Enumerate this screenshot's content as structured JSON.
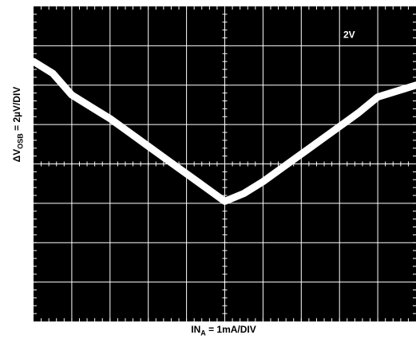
{
  "chart_data": {
    "type": "line",
    "title": "",
    "annotation": "2V",
    "xlabel": "IN",
    "xlabel_sub": "A",
    "xlabel_rest": " = 1mA/DIV",
    "ylabel": "ΔV",
    "ylabel_sub": "OSB",
    "ylabel_rest": " = 2µV/DIV",
    "xlim": [
      -5,
      5
    ],
    "ylim": [
      -4,
      4
    ],
    "x_divisions": 10,
    "y_divisions": 8,
    "grid": true,
    "colors": {
      "background": "#000000",
      "grid": "#ffffff",
      "trace": "#ffffff"
    },
    "series": [
      {
        "x": [
          -5.0,
          -4.5,
          -4.0,
          -3.5,
          -3.0,
          -2.5,
          -2.0,
          -1.5,
          -1.0,
          -0.5,
          0.0,
          0.5,
          1.0,
          1.5,
          2.0,
          2.5,
          3.0,
          3.5,
          4.0,
          4.5,
          5.0
        ],
        "y": [
          2.6,
          2.3,
          1.75,
          1.45,
          1.15,
          0.8,
          0.45,
          0.1,
          -0.25,
          -0.6,
          -0.95,
          -0.75,
          -0.45,
          -0.1,
          0.25,
          0.6,
          0.95,
          1.3,
          1.7,
          1.85,
          2.0
        ]
      }
    ]
  }
}
